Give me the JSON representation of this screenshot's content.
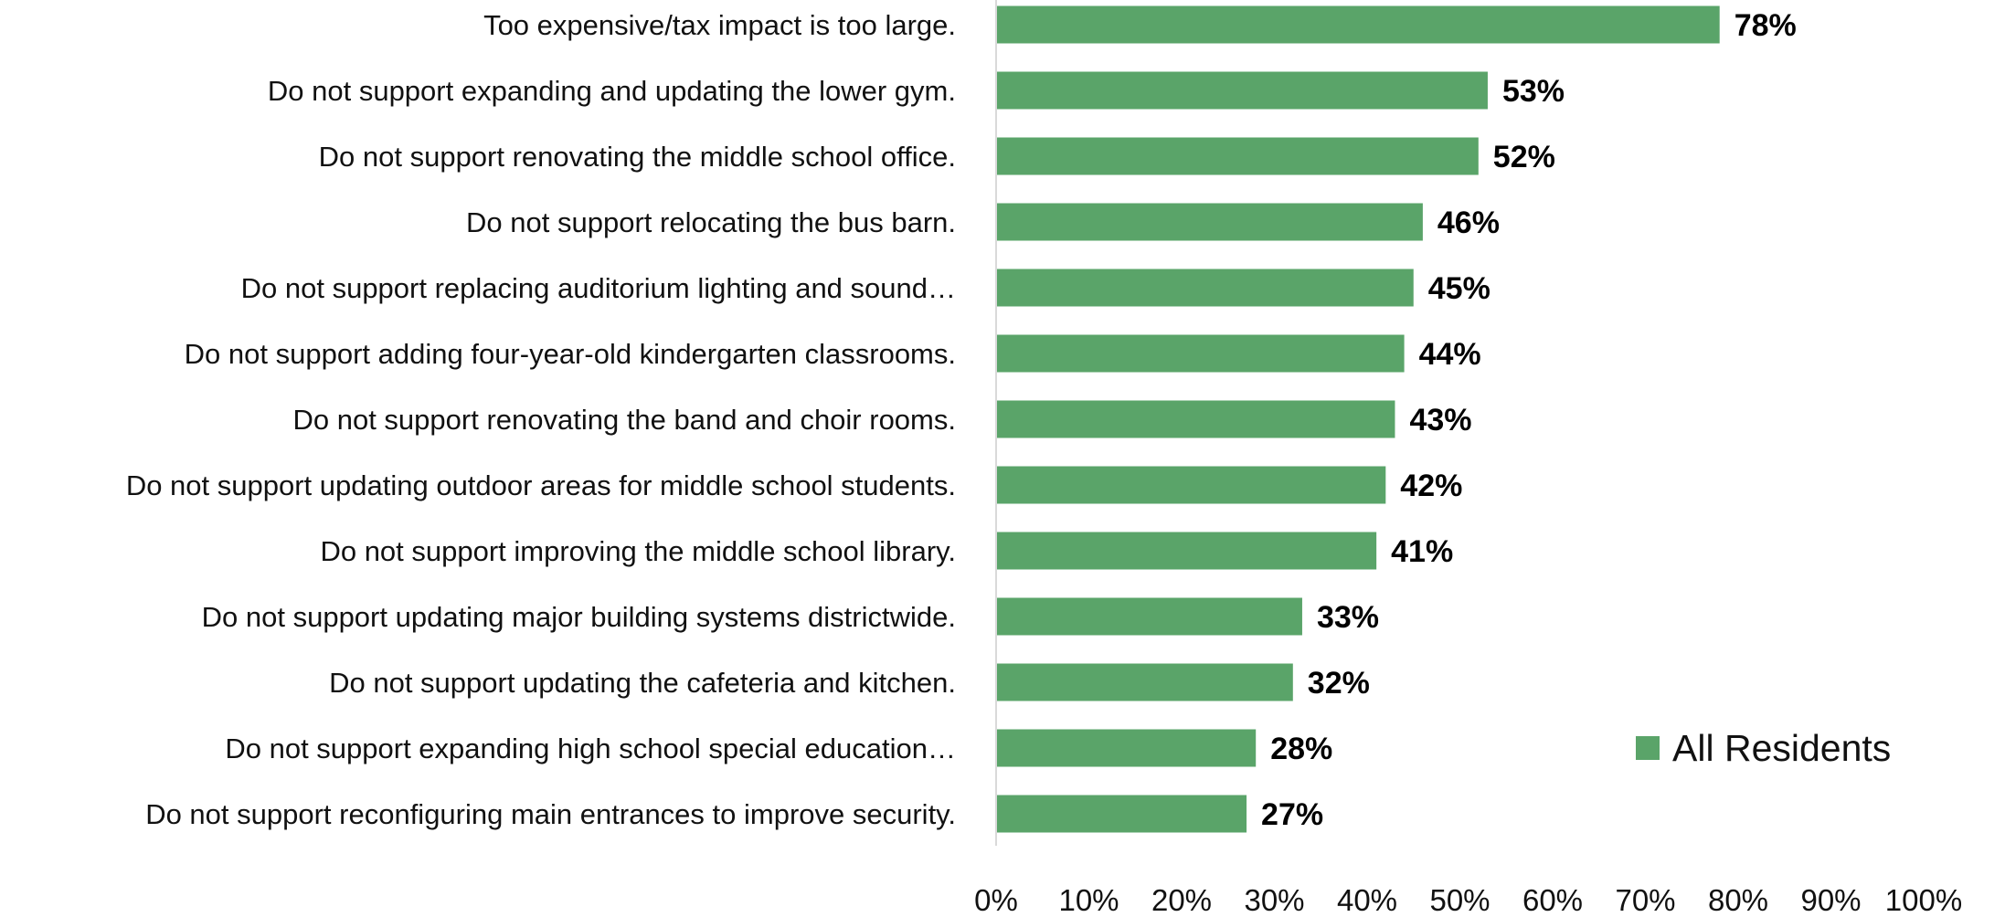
{
  "chart_data": {
    "type": "bar",
    "orientation": "horizontal",
    "categories": [
      "Too expensive/tax impact is too large.",
      "Do not support expanding and updating the lower gym.",
      "Do not support renovating the middle school office.",
      "Do not support relocating the bus barn.",
      "Do not support replacing auditorium lighting and sound…",
      "Do not support adding four-year-old kindergarten classrooms.",
      "Do not support renovating the band and choir rooms.",
      "Do not support updating outdoor areas for middle school students.",
      "Do not support improving the middle school library.",
      "Do not support updating major building systems districtwide.",
      "Do not support updating the cafeteria and kitchen.",
      "Do not support expanding high school special education…",
      "Do not support reconfiguring main entrances to improve security."
    ],
    "series": [
      {
        "name": "All Residents",
        "color": "#5aa469",
        "values": [
          78,
          53,
          52,
          46,
          45,
          44,
          43,
          42,
          41,
          33,
          32,
          28,
          27
        ],
        "labels": [
          "78%",
          "53%",
          "52%",
          "46%",
          "45%",
          "44%",
          "43%",
          "42%",
          "41%",
          "33%",
          "32%",
          "28%",
          "27%"
        ]
      }
    ],
    "xlim": [
      0,
      100
    ],
    "xticks": [
      "0%",
      "10%",
      "20%",
      "30%",
      "40%",
      "50%",
      "60%",
      "70%",
      "80%",
      "90%",
      "100%"
    ],
    "grid": false,
    "legend": {
      "position": "right",
      "entries": [
        "All Residents"
      ]
    },
    "axis_color": "#d9d9d9"
  }
}
